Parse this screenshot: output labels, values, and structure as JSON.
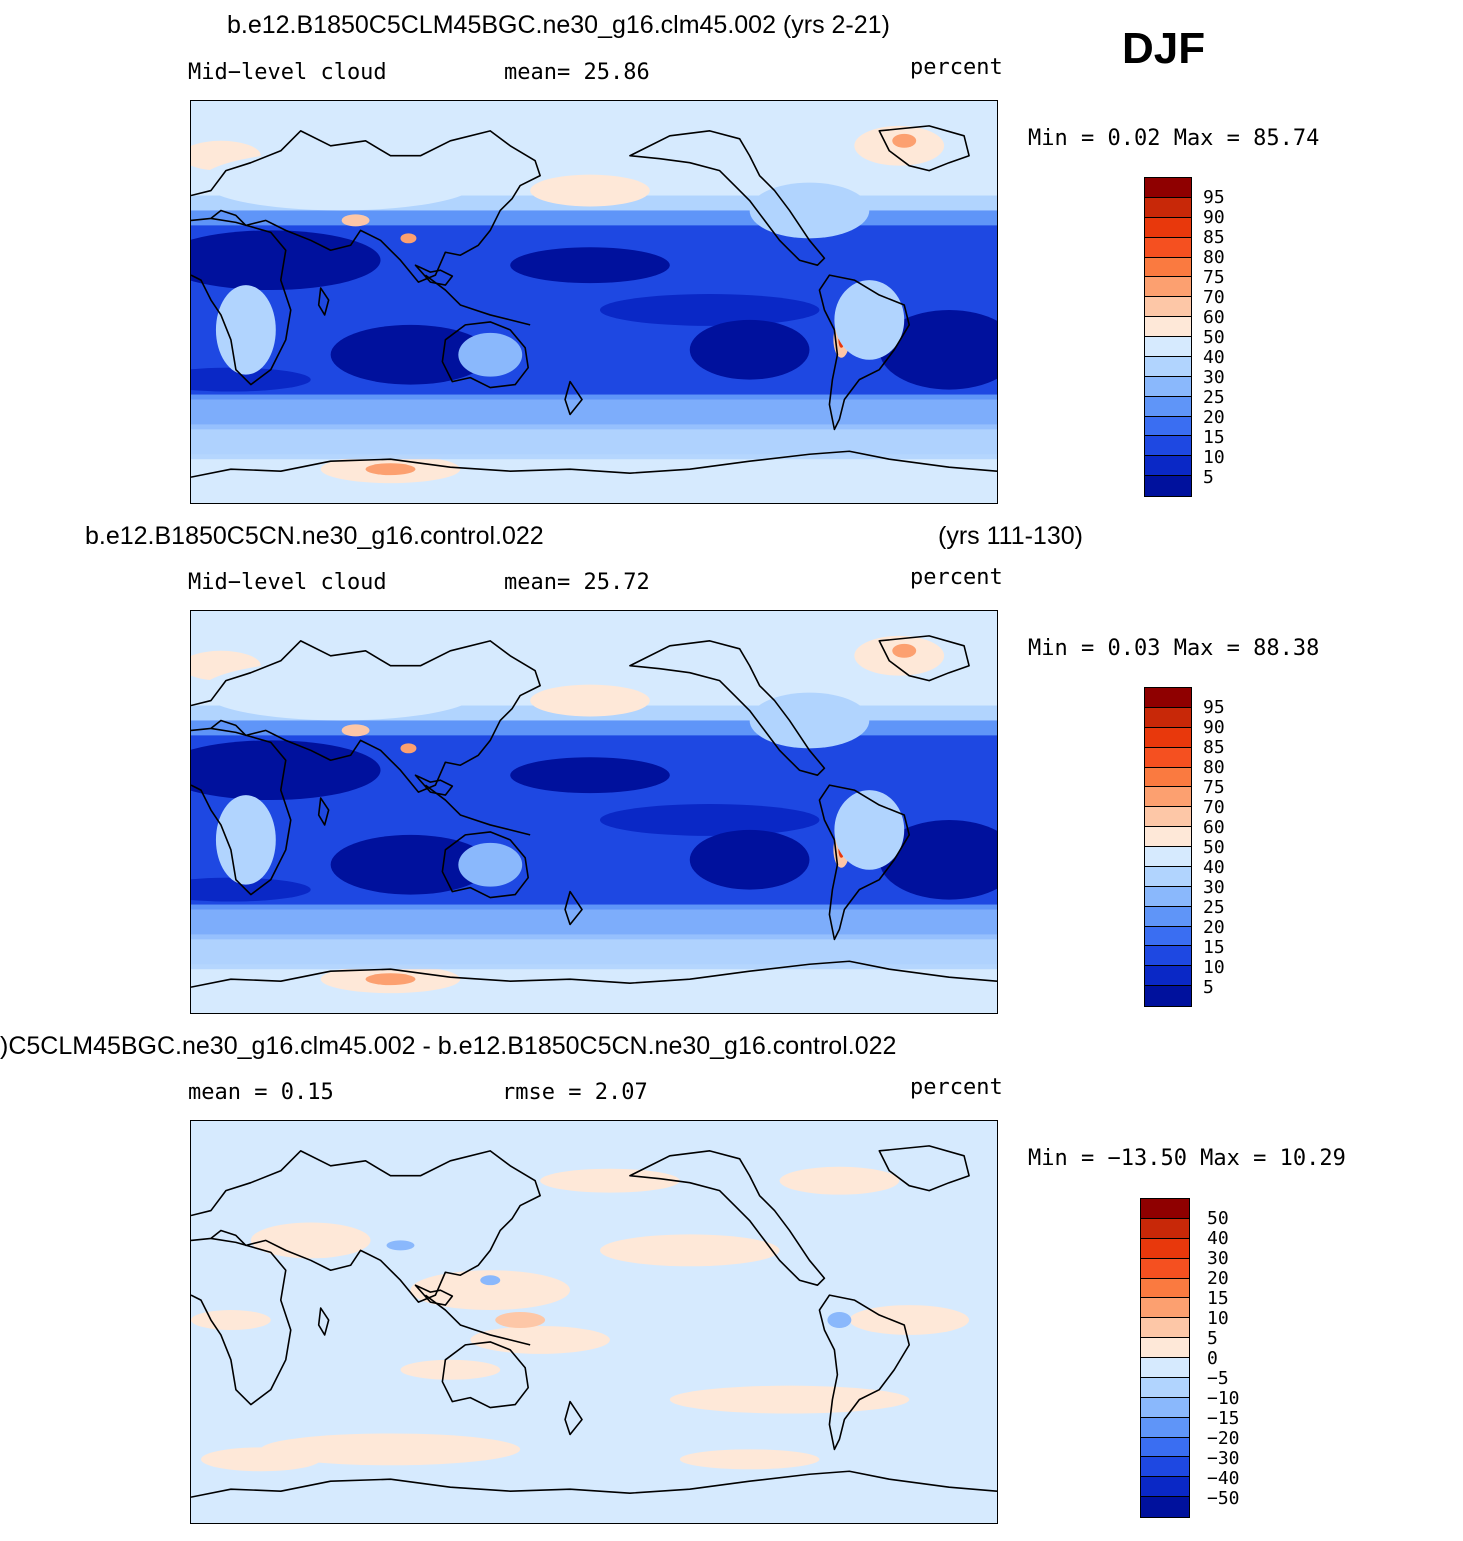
{
  "season": "DJF",
  "panels": [
    {
      "title": "b.e12.B1850C5CLM45BGC.ne30_g16.clm45.002 (yrs 2-21)",
      "title_right": "",
      "left_label": "Mid−level cloud",
      "center_label": "mean=   25.86",
      "units": "percent",
      "minmax": "Min =    0.02 Max =   85.74",
      "colorbar": {
        "labels": [
          "95",
          "90",
          "85",
          "80",
          "75",
          "70",
          "60",
          "50",
          "40",
          "30",
          "25",
          "20",
          "15",
          "10",
          "5"
        ],
        "colors": [
          "#8f0000",
          "#c82808",
          "#e8380c",
          "#f55020",
          "#fa7a40",
          "#fca070",
          "#fdc7a7",
          "#fee8d8",
          "#d6eafe",
          "#b1d4fe",
          "#8ab8fc",
          "#5f95f8",
          "#3a6ef2",
          "#1e48e2",
          "#0a28c6",
          "#00119d"
        ]
      },
      "kind": "mean"
    },
    {
      "title": "b.e12.B1850C5CN.ne30_g16.control.022",
      "title_right": "(yrs 111-130)",
      "left_label": "Mid−level cloud",
      "center_label": "mean=   25.72",
      "units": "percent",
      "minmax": "Min =    0.03 Max =   88.38",
      "colorbar": {
        "labels": [
          "95",
          "90",
          "85",
          "80",
          "75",
          "70",
          "60",
          "50",
          "40",
          "30",
          "25",
          "20",
          "15",
          "10",
          "5"
        ],
        "colors": [
          "#8f0000",
          "#c82808",
          "#e8380c",
          "#f55020",
          "#fa7a40",
          "#fca070",
          "#fdc7a7",
          "#fee8d8",
          "#d6eafe",
          "#b1d4fe",
          "#8ab8fc",
          "#5f95f8",
          "#3a6ef2",
          "#1e48e2",
          "#0a28c6",
          "#00119d"
        ]
      },
      "kind": "mean"
    },
    {
      "title": ")C5CLM45BGC.ne30_g16.clm45.002 - b.e12.B1850C5CN.ne30_g16.control.022",
      "title_right": "",
      "left_label": "mean =    0.15",
      "center_label": "rmse =    2.07",
      "units": "percent",
      "minmax": "Min = −13.50 Max =   10.29",
      "colorbar": {
        "labels": [
          "50",
          "40",
          "30",
          "20",
          "15",
          "10",
          "5",
          "0",
          "−5",
          "−10",
          "−15",
          "−20",
          "−30",
          "−40",
          "−50"
        ],
        "colors": [
          "#8f0000",
          "#c82808",
          "#e8380c",
          "#f55020",
          "#fa7a40",
          "#fca070",
          "#fdc7a7",
          "#fee8d8",
          "#d6eafe",
          "#b1d4fe",
          "#8ab8fc",
          "#5f95f8",
          "#3a6ef2",
          "#1e48e2",
          "#0a28c6",
          "#00119d"
        ]
      },
      "kind": "diff"
    }
  ]
}
